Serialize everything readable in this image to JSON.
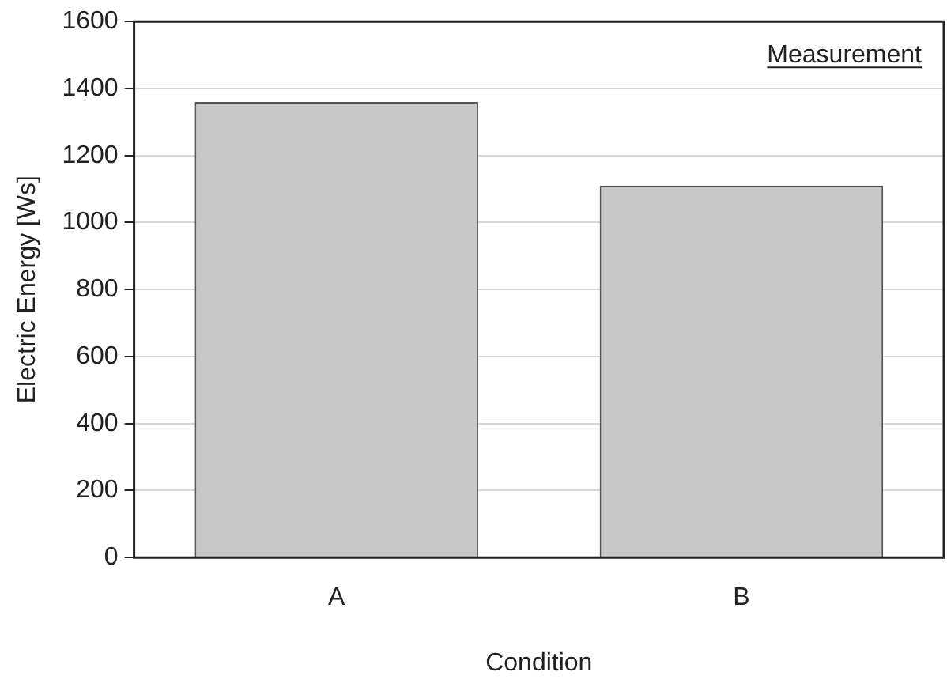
{
  "chart_data": {
    "type": "bar",
    "categories": [
      "A",
      "B"
    ],
    "values": [
      1360,
      1110
    ],
    "color": "#c8c8c8",
    "xlabel": "Condition",
    "ylabel": "Electric Energy [Ws]",
    "ylim": [
      0,
      1600
    ],
    "yticks": [
      0,
      200,
      400,
      600,
      800,
      1000,
      1200,
      1400,
      1600
    ],
    "grid": "y",
    "annotations": [
      "Measurement"
    ]
  }
}
